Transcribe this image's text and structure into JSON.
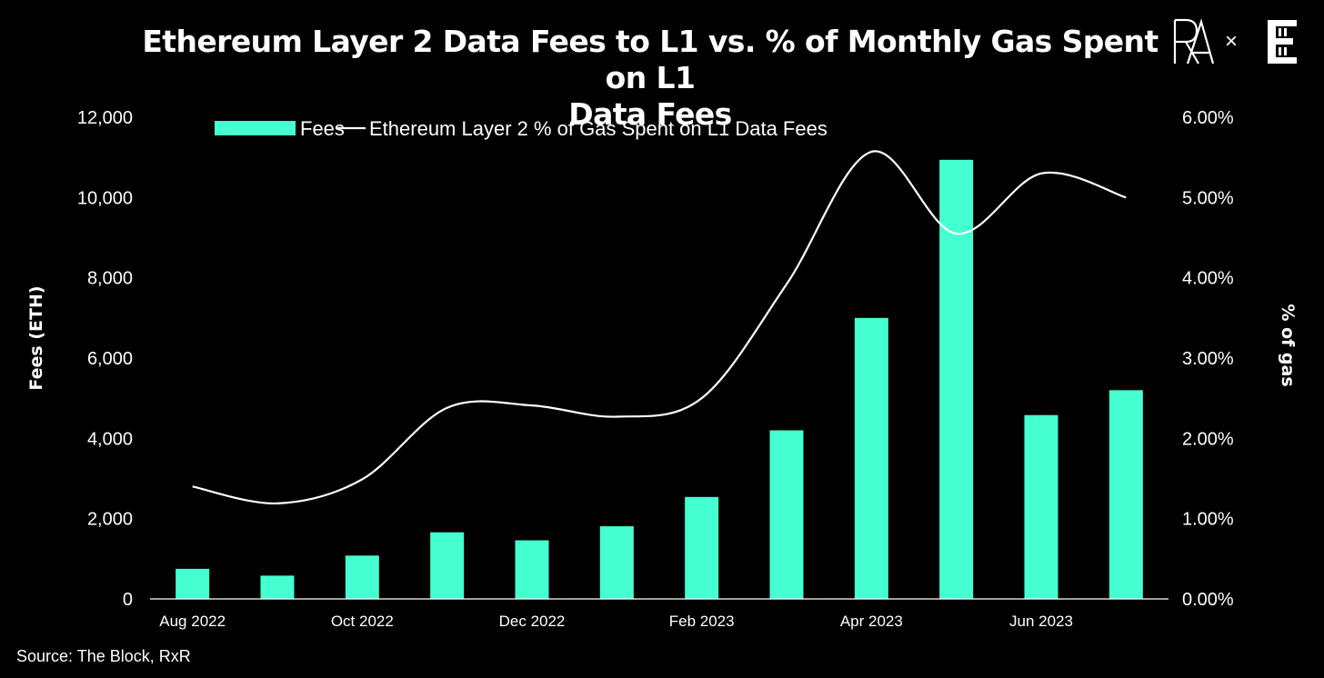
{
  "title_line1": "Ethereum Layer 2  Data Fees to L1 vs. % of Monthly Gas Spent on L1",
  "title_line2": "Data Fees",
  "brand": {
    "separator": "×",
    "logo_name": "rxr-logo-icon",
    "partner_logo_name": "the-block-logo-icon"
  },
  "source": "Source: The Block, RxR",
  "colors": {
    "background": "#000000",
    "bar": "#45FFD1",
    "line": "#FFFFFF",
    "text": "#FFFFFF"
  },
  "chart_data": {
    "type": "bar",
    "categories": [
      "Aug 2022",
      "Sep 2022",
      "Oct 2022",
      "Nov 2022",
      "Dec 2022",
      "Jan 2023",
      "Feb 2023",
      "Mar 2023",
      "Apr 2023",
      "May 2023",
      "Jun 2023",
      "Jul 2023"
    ],
    "x_tick_labels": [
      "Aug 2022",
      "",
      "Oct 2022",
      "",
      "Dec 2022",
      "",
      "Feb 2023",
      "",
      "Apr 2023",
      "",
      "Jun 2023",
      ""
    ],
    "series": [
      {
        "name": "Fees",
        "type": "bar",
        "axis": "left",
        "values": [
          750,
          580,
          1080,
          1660,
          1460,
          1810,
          2540,
          4200,
          7000,
          10940,
          4580,
          5200
        ]
      },
      {
        "name": "Ethereum Layer 2 % of Gas Spent on L1 Data Fees",
        "type": "line",
        "axis": "right",
        "smooth": true,
        "values": [
          1.4,
          1.19,
          1.49,
          2.38,
          2.41,
          2.27,
          2.5,
          3.92,
          5.57,
          4.55,
          5.3,
          5.0
        ]
      }
    ],
    "ylabel": "Fees (ETH)",
    "y2label": "% of gas",
    "ylim": [
      0,
      12000
    ],
    "y2lim": [
      0,
      6
    ],
    "yticks": [
      "0",
      "2,000",
      "4,000",
      "6,000",
      "8,000",
      "10,000",
      "12,000"
    ],
    "y2ticks": [
      "0.00%",
      "1.00%",
      "2.00%",
      "3.00%",
      "4.00%",
      "5.00%",
      "6.00%"
    ],
    "legend": {
      "placement": "top",
      "bar_label": "Fees",
      "line_label": "Ethereum Layer 2 % of Gas Spent on L1 Data Fees"
    },
    "grid": false
  }
}
